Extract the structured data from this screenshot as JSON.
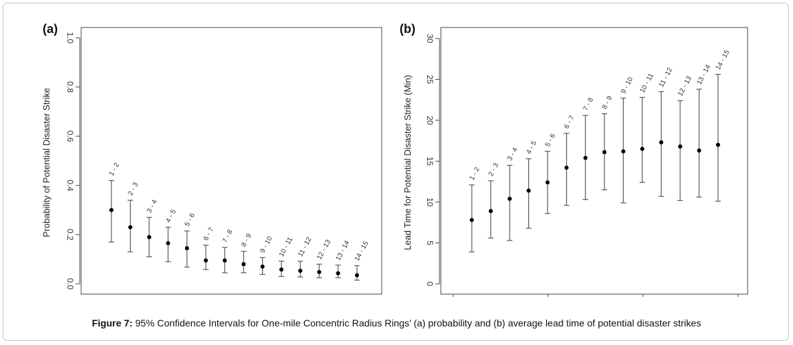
{
  "caption": {
    "label": "Figure 7:",
    "text": " 95% Confidence Intervals for One-mile Concentric Radius Rings’ (a) probability and (b) average lead time of potential disaster strikes"
  },
  "colors": {
    "axis": "#444444",
    "whisker": "#5a5a5a",
    "point": "#000000"
  },
  "chart_data": [
    {
      "type": "scatter",
      "panel_label": "(a)",
      "ylabel": "Probability of Potential Disaster Strike",
      "ylim": [
        0,
        1.0
      ],
      "yticks": [
        0.0,
        0.2,
        0.4,
        0.6,
        0.8,
        1.0
      ],
      "ytick_labels": [
        "0.0",
        "0.2",
        "0.4",
        "0.6",
        "0.8",
        "1.0"
      ],
      "grid": false,
      "categories": [
        "1 - 2",
        "2 - 3",
        "3 - 4",
        "4 - 5",
        "5 - 6",
        "6 - 7",
        "7 - 8",
        "8 - 9",
        "9 - 10",
        "10 - 11",
        "11 - 12",
        "12 - 13",
        "13 - 14",
        "14 - 15"
      ],
      "values": [
        0.3,
        0.23,
        0.19,
        0.165,
        0.145,
        0.095,
        0.095,
        0.08,
        0.07,
        0.058,
        0.053,
        0.048,
        0.043,
        0.035
      ],
      "lower": [
        0.17,
        0.13,
        0.11,
        0.09,
        0.068,
        0.058,
        0.045,
        0.045,
        0.038,
        0.03,
        0.028,
        0.025,
        0.025,
        0.015
      ],
      "upper": [
        0.42,
        0.34,
        0.27,
        0.23,
        0.215,
        0.157,
        0.148,
        0.132,
        0.107,
        0.092,
        0.092,
        0.08,
        0.076,
        0.074
      ]
    },
    {
      "type": "scatter",
      "panel_label": "(b)",
      "ylabel": "Lead Time for Potential Disaster Strike (Min)",
      "ylim": [
        0,
        30
      ],
      "yticks": [
        0,
        5,
        10,
        15,
        20,
        25,
        30
      ],
      "ytick_labels": [
        "0",
        "5",
        "10",
        "15",
        "20",
        "25",
        "30"
      ],
      "grid": false,
      "categories": [
        "1 - 2",
        "2 - 3",
        "3 - 4",
        "4 - 5",
        "5 - 6",
        "6 - 7",
        "7 - 8",
        "8 - 9",
        "9 - 10",
        "10 - 11",
        "11 - 12",
        "12 - 13",
        "13 - 14",
        "14 - 15"
      ],
      "values": [
        7.8,
        8.9,
        10.4,
        11.4,
        12.4,
        14.2,
        15.4,
        16.1,
        16.2,
        16.5,
        17.3,
        16.8,
        16.3,
        17.0
      ],
      "lower": [
        3.9,
        5.6,
        5.3,
        6.8,
        8.6,
        9.6,
        10.3,
        11.5,
        9.9,
        12.4,
        10.7,
        10.2,
        10.6,
        10.1
      ],
      "upper": [
        12.1,
        12.6,
        14.5,
        15.3,
        16.2,
        18.4,
        20.6,
        20.8,
        22.7,
        22.8,
        23.5,
        22.4,
        23.8,
        25.6
      ]
    }
  ]
}
